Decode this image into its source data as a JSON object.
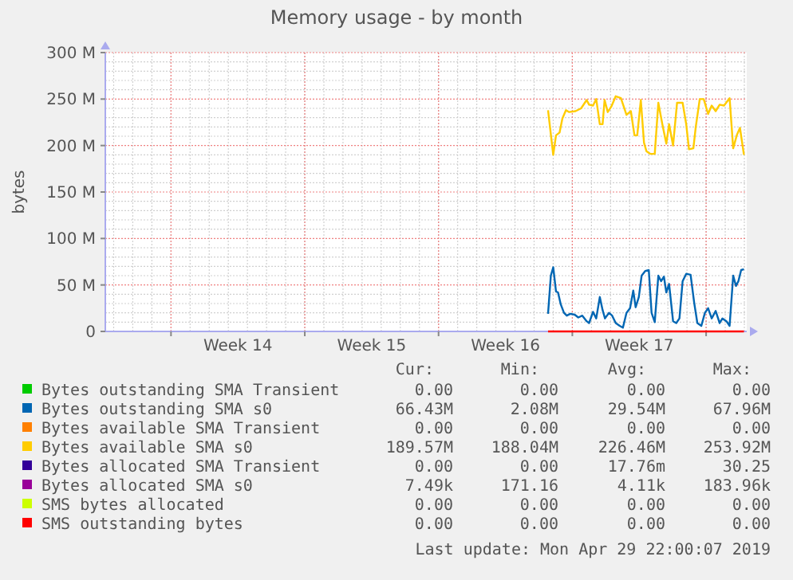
{
  "chart_data": {
    "type": "line",
    "title": "Memory usage - by month",
    "ylabel": "bytes",
    "xlim": [
      "2019-03-27T13:30",
      "2019-04-30T03:00"
    ],
    "xticks": [
      {
        "value": "2019-03-31",
        "label": null
      },
      {
        "value": "2019-04-03T12:00",
        "label": "Week 14"
      },
      {
        "value": "2019-04-07",
        "label": null
      },
      {
        "value": "2019-04-10T12:00",
        "label": "Week 15"
      },
      {
        "value": "2019-04-14",
        "label": null
      },
      {
        "value": "2019-04-17T12:00",
        "label": "Week 16"
      },
      {
        "value": "2019-04-21",
        "label": null
      },
      {
        "value": "2019-04-24T12:00",
        "label": "Week 17"
      },
      {
        "value": "2019-04-28",
        "label": null
      }
    ],
    "ylim": [
      0,
      300
    ],
    "yticks": [
      {
        "value": 0,
        "label": "0"
      },
      {
        "value": 50,
        "label": "50 M"
      },
      {
        "value": 100,
        "label": "100 M"
      },
      {
        "value": 150,
        "label": "150 M"
      },
      {
        "value": 200,
        "label": "200 M"
      },
      {
        "value": 250,
        "label": "250 M"
      },
      {
        "value": 300,
        "label": "300 M"
      }
    ],
    "grid": true,
    "legend": "bottom",
    "series": [
      {
        "name": "Bytes outstanding SMA Transient",
        "color": "#00cc00"
      },
      {
        "name": "Bytes outstanding SMA s0",
        "color": "#0066b3",
        "x": [
          "2019-04-19T17:30",
          "2019-04-19T21:00",
          "2019-04-20T00:00",
          "2019-04-20T03:30",
          "2019-04-20T06:00",
          "2019-04-20T09:30",
          "2019-04-20T13:30",
          "2019-04-20T17:00",
          "2019-04-20T21:30",
          "2019-04-21T03:00",
          "2019-04-21T07:30",
          "2019-04-21T12:30",
          "2019-04-21T18:00",
          "2019-04-21T21:00",
          "2019-04-22T02:00",
          "2019-04-22T06:00",
          "2019-04-22T10:30",
          "2019-04-22T14:00",
          "2019-04-22T17:00",
          "2019-04-22T22:00",
          "2019-04-23T02:00",
          "2019-04-23T06:30",
          "2019-04-23T11:30",
          "2019-04-23T15:30",
          "2019-04-23T20:00",
          "2019-04-24T00:30",
          "2019-04-24T04:30",
          "2019-04-24T07:30",
          "2019-04-24T11:30",
          "2019-04-24T15:00",
          "2019-04-24T19:30",
          "2019-04-25T00:00",
          "2019-04-25T03:30",
          "2019-04-25T07:30",
          "2019-04-25T12:00",
          "2019-04-25T15:30",
          "2019-04-25T19:00",
          "2019-04-25T22:00",
          "2019-04-26T01:30",
          "2019-04-26T06:30",
          "2019-04-26T10:30",
          "2019-04-26T14:30",
          "2019-04-26T18:30",
          "2019-04-26T23:00",
          "2019-04-27T04:30",
          "2019-04-27T09:00",
          "2019-04-27T13:00",
          "2019-04-27T18:00",
          "2019-04-27T22:30",
          "2019-04-28T02:30",
          "2019-04-28T07:00",
          "2019-04-28T12:00",
          "2019-04-28T17:00",
          "2019-04-28T20:30",
          "2019-04-29T01:30",
          "2019-04-29T05:30",
          "2019-04-29T10:00",
          "2019-04-29T13:30",
          "2019-04-29T16:30",
          "2019-04-29T20:00",
          "2019-04-29T23:30"
        ],
        "values": [
          19,
          60,
          69,
          43,
          42,
          29,
          20,
          17,
          19,
          18,
          15,
          17,
          11,
          9,
          21,
          14,
          37,
          23,
          14,
          20,
          17,
          9,
          6,
          4,
          20,
          25,
          44,
          26,
          37,
          60,
          65,
          66,
          20,
          10,
          60,
          54,
          59,
          42,
          51,
          11,
          9,
          14,
          54,
          62,
          61,
          31,
          9,
          6,
          20,
          25,
          14,
          22,
          9,
          14,
          11,
          6,
          60,
          49,
          54,
          66,
          67
        ]
      },
      {
        "name": "Bytes available SMA Transient",
        "color": "#ff8000"
      },
      {
        "name": "Bytes available SMA s0",
        "color": "#ffcc00",
        "x": [
          "2019-04-19T17:30",
          "2019-04-20T00:00",
          "2019-04-20T03:30",
          "2019-04-20T08:00",
          "2019-04-20T11:30",
          "2019-04-20T16:00",
          "2019-04-20T20:00",
          "2019-04-21T04:00",
          "2019-04-21T11:00",
          "2019-04-21T18:00",
          "2019-04-21T21:00",
          "2019-04-22T02:00",
          "2019-04-22T06:00",
          "2019-04-22T10:30",
          "2019-04-22T14:00",
          "2019-04-22T16:30",
          "2019-04-22T20:30",
          "2019-04-23T01:00",
          "2019-04-23T06:30",
          "2019-04-23T13:00",
          "2019-04-23T20:00",
          "2019-04-24T01:30",
          "2019-04-24T06:00",
          "2019-04-24T09:30",
          "2019-04-24T14:00",
          "2019-04-24T18:00",
          "2019-04-24T21:00",
          "2019-04-25T02:00",
          "2019-04-25T07:30",
          "2019-04-25T12:00",
          "2019-04-25T17:00",
          "2019-04-25T22:00",
          "2019-04-26T01:30",
          "2019-04-26T06:30",
          "2019-04-26T11:30",
          "2019-04-26T18:30",
          "2019-04-26T23:00",
          "2019-04-27T02:30",
          "2019-04-27T08:00",
          "2019-04-27T11:00",
          "2019-04-27T16:00",
          "2019-04-27T21:00",
          "2019-04-28T02:30",
          "2019-04-28T07:00",
          "2019-04-28T12:00",
          "2019-04-28T17:00",
          "2019-04-28T22:30",
          "2019-04-29T05:30",
          "2019-04-29T10:00",
          "2019-04-29T14:30",
          "2019-04-29T18:30",
          "2019-04-29T23:30"
        ],
        "values": [
          238,
          190,
          211,
          214,
          229,
          238,
          236,
          237,
          240,
          249,
          244,
          243,
          250,
          223,
          223,
          249,
          236,
          242,
          253,
          251,
          233,
          237,
          211,
          211,
          249,
          203,
          194,
          191,
          191,
          246,
          223,
          202,
          223,
          200,
          246,
          246,
          223,
          196,
          197,
          220,
          250,
          250,
          234,
          243,
          237,
          244,
          243,
          251,
          197,
          211,
          219,
          190
        ]
      },
      {
        "name": "Bytes allocated SMA Transient",
        "color": "#330099"
      },
      {
        "name": "Bytes allocated SMA s0",
        "color": "#990099"
      },
      {
        "name": "SMS bytes allocated",
        "color": "#ccff00"
      },
      {
        "name": "SMS outstanding bytes",
        "color": "#ff0000",
        "x": [
          "2019-04-19T17:30",
          "2019-04-29T23:30"
        ],
        "values": [
          0,
          0
        ]
      }
    ],
    "annotations": [
      "Cur:",
      "Min:",
      "Avg:",
      "Max:",
      "0.00",
      "0.00",
      "0.00",
      "0.00",
      "66.43M",
      "2.08M",
      "29.54M",
      "67.96M",
      "0.00",
      "0.00",
      "0.00",
      "0.00",
      "189.57M",
      "188.04M",
      "226.46M",
      "253.92M",
      "0.00",
      "0.00",
      "17.76m",
      "30.25",
      "7.49k",
      "171.16",
      "4.11k",
      "183.96k",
      "0.00",
      "0.00",
      "0.00",
      "0.00",
      "0.00",
      "0.00",
      "0.00",
      "0.00",
      "Last update: Mon Apr 29 22:00:07 2019"
    ]
  }
}
